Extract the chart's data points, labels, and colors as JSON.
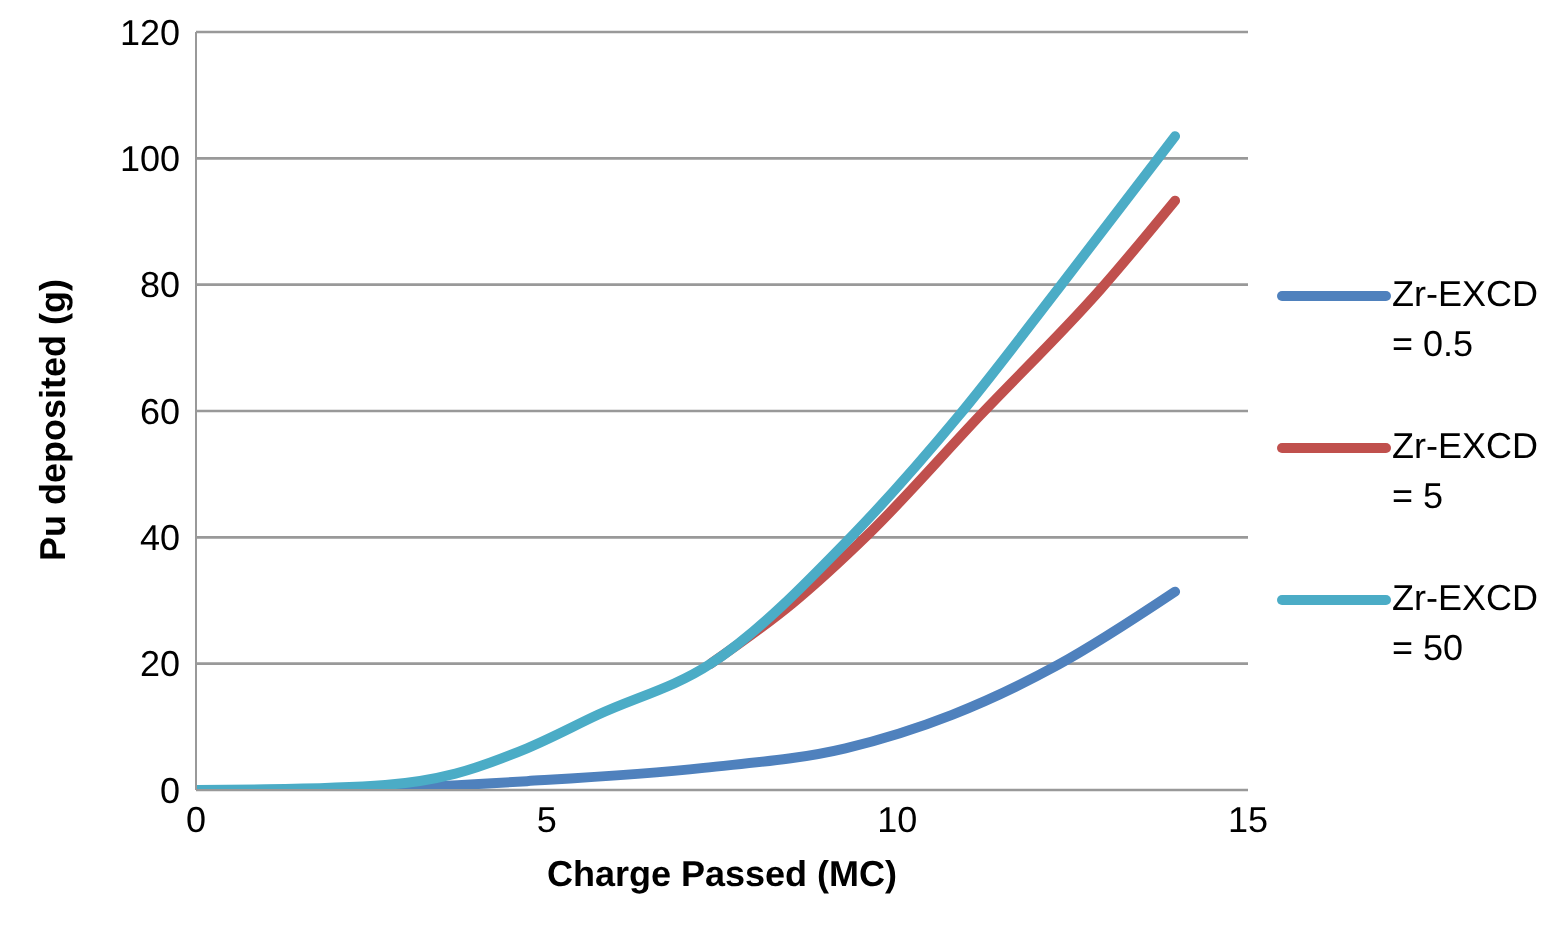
{
  "chart_data": {
    "type": "line",
    "xlabel": "Charge Passed (MC)",
    "ylabel": "Pu deposited (g)",
    "xlim": [
      0,
      15
    ],
    "xticks": [
      0,
      5,
      10,
      15
    ],
    "ylim": [
      0,
      120
    ],
    "yticks": [
      0,
      20,
      40,
      60,
      80,
      100,
      120
    ],
    "grid": "y",
    "legend": "right",
    "marker": "none",
    "line_style": "solid",
    "series": [
      {
        "name": "Zr-EXCD = 0.5",
        "color": "#4f81bd",
        "x": [
          0,
          1,
          2.7,
          4.72,
          7.24,
          9.26,
          10.78,
          12.29,
          13.96
        ],
        "values": [
          0,
          0,
          0.3,
          1.4,
          3.5,
          6.6,
          11.9,
          19.8,
          31.4
        ]
      },
      {
        "name": "Zr-EXCD = 5",
        "color": "#c0504d",
        "x": [
          7.34,
          8.5,
          9.57,
          11.18,
          12.9,
          13.96
        ],
        "values": [
          20,
          29.5,
          40.3,
          59.3,
          79.3,
          93.3
        ]
      },
      {
        "name": "Zr-EXCD = 50",
        "color": "#4bacc6",
        "x": [
          0,
          1,
          2.7,
          3.7,
          4.72,
          5.73,
          7.34,
          9.36,
          10.88,
          12.29,
          13.96
        ],
        "values": [
          0,
          0.1,
          0.8,
          2.6,
          6.6,
          11.9,
          20,
          40.3,
          59.3,
          79.3,
          103.5
        ]
      }
    ]
  }
}
